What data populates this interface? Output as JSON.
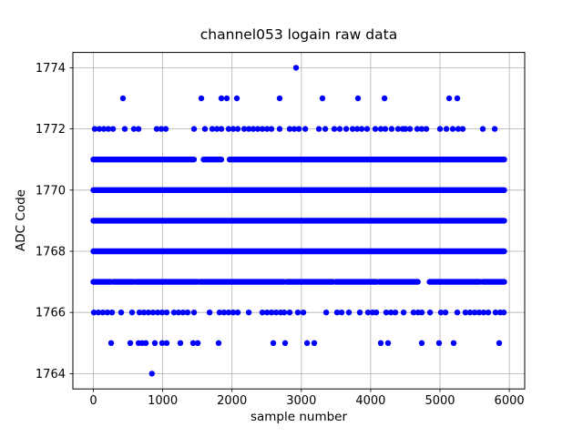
{
  "chart_data": {
    "type": "scatter",
    "title": "channel053 logain raw data",
    "xlabel": "sample number",
    "ylabel": "ADC Code",
    "xlim": [
      -296,
      6222
    ],
    "ylim": [
      1763.5,
      1774.5
    ],
    "xticks": [
      0,
      1000,
      2000,
      3000,
      4000,
      5000,
      6000
    ],
    "yticks": [
      1764,
      1766,
      1768,
      1770,
      1772,
      1774
    ],
    "grid": true,
    "grid_color": "#b0b0b0",
    "spine_color": "#000000",
    "marker": {
      "shape": "circle",
      "color": "#0000ff",
      "radius_px": 3.2
    },
    "rows": [
      {
        "code": 1774,
        "points": [
          2924
        ]
      },
      {
        "code": 1773,
        "points": [
          427,
          1557,
          1846,
          1925,
          2070,
          2687,
          3305,
          3817,
          4199,
          5132,
          5250
        ]
      },
      {
        "code": 1772,
        "points": [
          20,
          85,
          151,
          217,
          283,
          453,
          585,
          651,
          913,
          979,
          1045,
          1452,
          1610,
          1715,
          1781,
          1846,
          1951,
          2017,
          2083,
          2175,
          2241,
          2306,
          2372,
          2438,
          2504,
          2569,
          2687,
          2832,
          2898,
          2964,
          3056,
          3253,
          3345,
          3476,
          3555,
          3647,
          3739,
          3805,
          3870,
          3949,
          4067,
          4146,
          4212,
          4304,
          4396,
          4462,
          4501,
          4567,
          4672,
          4737,
          4803,
          5000,
          5092,
          5184,
          5263,
          5329,
          5618,
          5789
        ]
      },
      {
        "code": 1771,
        "bands": [
          [
            0,
            1450
          ],
          [
            1590,
            1845
          ],
          [
            1965,
            5926
          ]
        ]
      },
      {
        "code": 1770,
        "bands": [
          [
            0,
            5926
          ]
        ]
      },
      {
        "code": 1769,
        "bands": [
          [
            0,
            5926
          ]
        ]
      },
      {
        "code": 1768,
        "bands": [
          [
            0,
            5926
          ]
        ]
      },
      {
        "code": 1767,
        "bands": [
          [
            0,
            250
          ],
          [
            290,
            580
          ],
          [
            620,
            1500
          ],
          [
            1540,
            2745
          ],
          [
            2790,
            3455
          ],
          [
            3500,
            4085
          ],
          [
            4130,
            4680
          ],
          [
            4850,
            5570
          ],
          [
            5615,
            5926
          ]
        ]
      },
      {
        "code": 1766,
        "points": [
          7,
          72,
          138,
          204,
          269,
          401,
          558,
          664,
          729,
          795,
          861,
          927,
          992,
          1058,
          1163,
          1229,
          1294,
          1360,
          1452,
          1676,
          1820,
          1886,
          1951,
          2017,
          2083,
          2241,
          2438,
          2504,
          2569,
          2635,
          2701,
          2753,
          2832,
          2950,
          3029,
          3358,
          3515,
          3581,
          3686,
          3844,
          3962,
          4028,
          4080,
          4225,
          4291,
          4356,
          4475,
          4619,
          4685,
          4737,
          4856,
          5013,
          5079,
          5250,
          5368,
          5434,
          5500,
          5565,
          5631,
          5697,
          5802,
          5868,
          5920
        ]
      },
      {
        "code": 1765,
        "points": [
          256,
          532,
          651,
          703,
          756,
          887,
          992,
          1058,
          1255,
          1439,
          1505,
          1807,
          2595,
          2766,
          3082,
          3187,
          4146,
          4251,
          4737,
          4987,
          5197,
          5854
        ]
      },
      {
        "code": 1764,
        "points": [
          844
        ]
      }
    ]
  }
}
